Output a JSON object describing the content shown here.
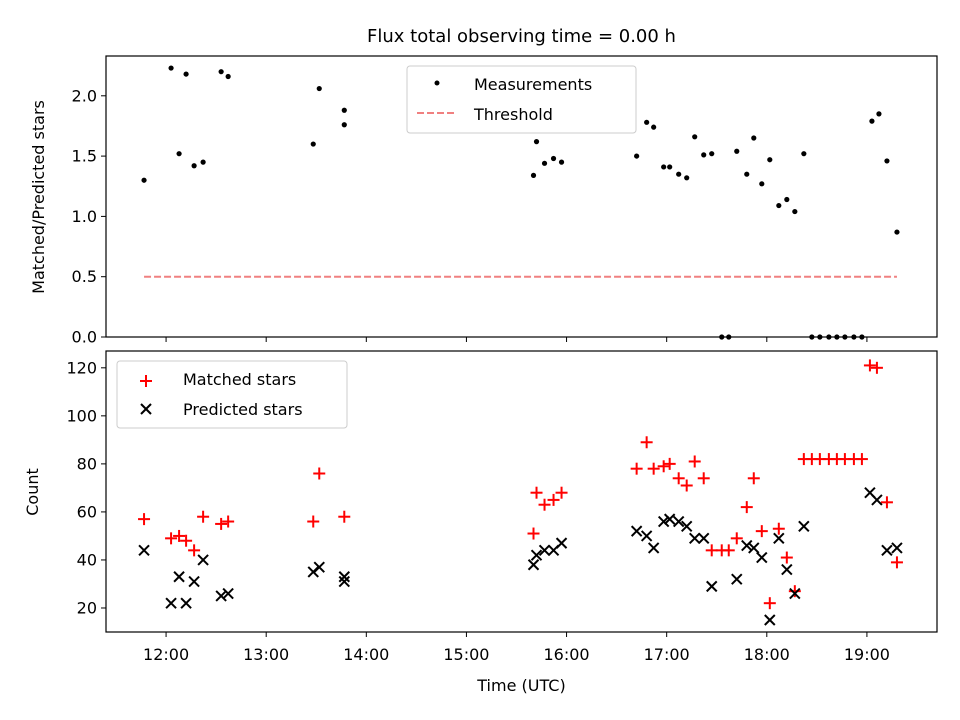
{
  "chart_data": [
    {
      "type": "scatter",
      "title": "Flux total observing time = 0.00 h",
      "xlabel": "",
      "ylabel": "Matched/Predicted stars",
      "x_time_unit": "UTC hours",
      "xlim": [
        11.4,
        19.7
      ],
      "ylim": [
        0,
        2.33
      ],
      "yticks": [
        "0.0",
        "0.5",
        "1.0",
        "1.5",
        "2.0"
      ],
      "legend": "top-center",
      "series": [
        {
          "name": "Measurements",
          "kind": "dot",
          "color": "#000000",
          "points": [
            [
              11.78,
              1.3
            ],
            [
              12.05,
              2.23
            ],
            [
              12.13,
              1.52
            ],
            [
              12.2,
              2.18
            ],
            [
              12.28,
              1.42
            ],
            [
              12.37,
              1.45
            ],
            [
              12.55,
              2.2
            ],
            [
              12.62,
              2.16
            ],
            [
              13.47,
              1.6
            ],
            [
              13.53,
              2.06
            ],
            [
              13.78,
              1.88
            ],
            [
              13.78,
              1.76
            ],
            [
              15.67,
              1.34
            ],
            [
              15.7,
              1.62
            ],
            [
              15.78,
              1.44
            ],
            [
              15.87,
              1.48
            ],
            [
              15.95,
              1.45
            ],
            [
              16.7,
              1.5
            ],
            [
              16.8,
              1.78
            ],
            [
              16.87,
              1.74
            ],
            [
              16.97,
              1.41
            ],
            [
              17.03,
              1.41
            ],
            [
              17.12,
              1.35
            ],
            [
              17.2,
              1.32
            ],
            [
              17.28,
              1.66
            ],
            [
              17.37,
              1.51
            ],
            [
              17.45,
              1.52
            ],
            [
              17.55,
              0.0
            ],
            [
              17.62,
              0.0
            ],
            [
              17.7,
              1.54
            ],
            [
              17.8,
              1.35
            ],
            [
              17.87,
              1.65
            ],
            [
              17.95,
              1.27
            ],
            [
              18.03,
              1.47
            ],
            [
              18.12,
              1.09
            ],
            [
              18.2,
              1.14
            ],
            [
              18.28,
              1.04
            ],
            [
              18.37,
              1.52
            ],
            [
              18.45,
              0.0
            ],
            [
              18.53,
              0.0
            ],
            [
              18.62,
              0.0
            ],
            [
              18.7,
              0.0
            ],
            [
              18.78,
              0.0
            ],
            [
              18.87,
              0.0
            ],
            [
              18.95,
              0.0
            ],
            [
              19.05,
              1.79
            ],
            [
              19.12,
              1.85
            ],
            [
              19.2,
              1.46
            ],
            [
              19.3,
              0.87
            ]
          ]
        },
        {
          "name": "Threshold",
          "kind": "dashed-line",
          "color": "#f08080",
          "points": [
            [
              11.78,
              0.5
            ],
            [
              19.3,
              0.5
            ]
          ]
        }
      ]
    },
    {
      "type": "scatter",
      "title": "",
      "xlabel": "Time (UTC)",
      "ylabel": "Count",
      "xlim": [
        11.4,
        19.7
      ],
      "ylim": [
        10,
        127
      ],
      "yticks": [
        "20",
        "40",
        "60",
        "80",
        "100",
        "120"
      ],
      "xticks": [
        "12:00",
        "13:00",
        "14:00",
        "15:00",
        "16:00",
        "17:00",
        "18:00",
        "19:00"
      ],
      "xtick_values": [
        12,
        13,
        14,
        15,
        16,
        17,
        18,
        19
      ],
      "legend": "top-left",
      "series": [
        {
          "name": "Matched stars",
          "kind": "plus",
          "color": "#ff0000",
          "points": [
            [
              11.78,
              57
            ],
            [
              12.05,
              49
            ],
            [
              12.13,
              50
            ],
            [
              12.2,
              48
            ],
            [
              12.28,
              44
            ],
            [
              12.37,
              58
            ],
            [
              12.55,
              55
            ],
            [
              12.62,
              56
            ],
            [
              13.47,
              56
            ],
            [
              13.53,
              76
            ],
            [
              13.78,
              58
            ],
            [
              15.67,
              51
            ],
            [
              15.7,
              68
            ],
            [
              15.78,
              63
            ],
            [
              15.87,
              65
            ],
            [
              15.95,
              68
            ],
            [
              16.7,
              78
            ],
            [
              16.8,
              89
            ],
            [
              16.87,
              78
            ],
            [
              16.97,
              79
            ],
            [
              17.03,
              80
            ],
            [
              17.12,
              74
            ],
            [
              17.2,
              71
            ],
            [
              17.28,
              81
            ],
            [
              17.37,
              74
            ],
            [
              17.45,
              44
            ],
            [
              17.55,
              44
            ],
            [
              17.62,
              44
            ],
            [
              17.7,
              49
            ],
            [
              17.8,
              62
            ],
            [
              17.87,
              74
            ],
            [
              17.95,
              52
            ],
            [
              18.03,
              22
            ],
            [
              18.12,
              53
            ],
            [
              18.2,
              41
            ],
            [
              18.28,
              27
            ],
            [
              18.37,
              82
            ],
            [
              18.45,
              82
            ],
            [
              18.53,
              82
            ],
            [
              18.62,
              82
            ],
            [
              18.7,
              82
            ],
            [
              18.78,
              82
            ],
            [
              18.87,
              82
            ],
            [
              18.95,
              82
            ],
            [
              19.03,
              121
            ],
            [
              19.1,
              120
            ],
            [
              19.2,
              64
            ],
            [
              19.3,
              39
            ]
          ]
        },
        {
          "name": "Predicted stars",
          "kind": "x",
          "color": "#000000",
          "points": [
            [
              11.78,
              44
            ],
            [
              12.05,
              22
            ],
            [
              12.13,
              33
            ],
            [
              12.2,
              22
            ],
            [
              12.28,
              31
            ],
            [
              12.37,
              40
            ],
            [
              12.55,
              25
            ],
            [
              12.62,
              26
            ],
            [
              13.47,
              35
            ],
            [
              13.53,
              37
            ],
            [
              13.78,
              33
            ],
            [
              13.78,
              31
            ],
            [
              15.67,
              38
            ],
            [
              15.7,
              42
            ],
            [
              15.78,
              44
            ],
            [
              15.87,
              44
            ],
            [
              15.95,
              47
            ],
            [
              16.7,
              52
            ],
            [
              16.8,
              50
            ],
            [
              16.87,
              45
            ],
            [
              16.97,
              56
            ],
            [
              17.03,
              57
            ],
            [
              17.12,
              56
            ],
            [
              17.2,
              54
            ],
            [
              17.28,
              49
            ],
            [
              17.37,
              49
            ],
            [
              17.45,
              29
            ],
            [
              17.7,
              32
            ],
            [
              17.8,
              46
            ],
            [
              17.87,
              45
            ],
            [
              17.95,
              41
            ],
            [
              18.03,
              15
            ],
            [
              18.12,
              49
            ],
            [
              18.2,
              36
            ],
            [
              18.28,
              26
            ],
            [
              18.37,
              54
            ],
            [
              19.03,
              68
            ],
            [
              19.1,
              65
            ],
            [
              19.2,
              44
            ],
            [
              19.3,
              45
            ]
          ]
        }
      ]
    }
  ]
}
